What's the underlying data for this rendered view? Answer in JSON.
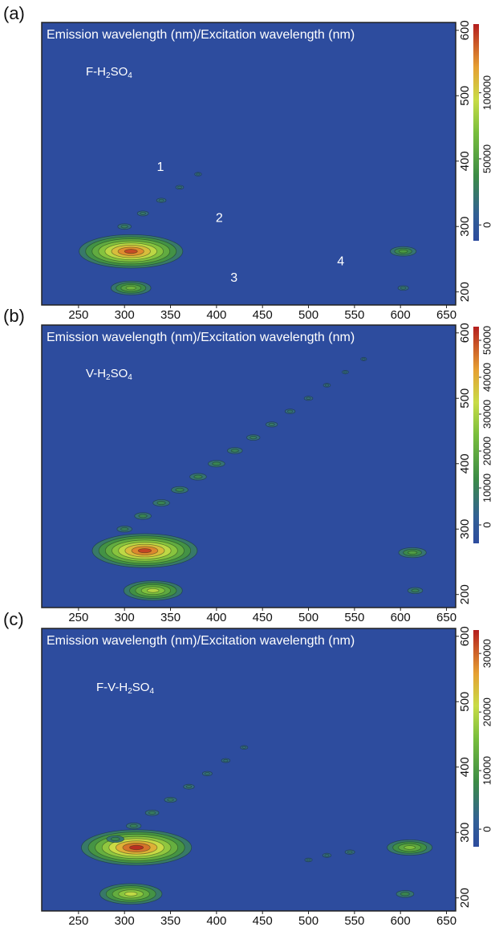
{
  "chart_data": [
    {
      "type": "contour",
      "panel_label": "(a)",
      "title": "Emission wavelength (nm)/Excitation wavelength (nm)",
      "sample": "F-H2SO4",
      "xlim": [
        210,
        660
      ],
      "xticks": [
        250,
        300,
        350,
        400,
        450,
        500,
        550,
        600,
        650
      ],
      "ylim": [
        180,
        612
      ],
      "yticks": [
        200,
        300,
        400,
        500,
        600
      ],
      "clim": [
        -12000,
        152000
      ],
      "cticks": [
        0,
        50000,
        100000
      ],
      "peaks": {
        "x": [
          307,
          307,
          603,
          603,
          300,
          320,
          340,
          360,
          380
        ],
        "y": [
          262,
          206,
          262,
          206,
          300,
          320,
          340,
          360,
          380
        ],
        "values": [
          140000,
          60000,
          40000,
          15000,
          20000,
          16000,
          13000,
          10000,
          8000
        ]
      },
      "annotations": [
        {
          "text": "1",
          "x": 339,
          "y": 390
        },
        {
          "text": "2",
          "x": 403,
          "y": 312
        },
        {
          "text": "3",
          "x": 419,
          "y": 221
        },
        {
          "text": "4",
          "x": 535,
          "y": 246
        }
      ]
    },
    {
      "type": "contour",
      "panel_label": "(b)",
      "title": "Emission wavelength (nm)/Excitation wavelength (nm)",
      "sample": "V-H2SO4",
      "xlim": [
        210,
        660
      ],
      "xticks": [
        250,
        300,
        350,
        400,
        450,
        500,
        550,
        600,
        650
      ],
      "ylim": [
        180,
        612
      ],
      "yticks": [
        200,
        300,
        400,
        500,
        600
      ],
      "clim": [
        -5000,
        53700
      ],
      "cticks": [
        0,
        10000,
        20000,
        30000,
        40000,
        50000
      ],
      "peaks": {
        "x": [
          322,
          331,
          613,
          616,
          300,
          320,
          340,
          360,
          380,
          400,
          420,
          440,
          460,
          480,
          500,
          520,
          540,
          560
        ],
        "y": [
          267,
          206,
          264,
          206,
          300,
          320,
          340,
          360,
          380,
          400,
          420,
          440,
          460,
          480,
          500,
          520,
          540,
          560
        ],
        "values": [
          50000,
          30000,
          15000,
          8000,
          8000,
          9000,
          9000,
          9000,
          9000,
          9000,
          8000,
          7000,
          6000,
          5000,
          4000,
          3000,
          2500,
          2000
        ]
      }
    },
    {
      "type": "contour",
      "panel_label": "(c)",
      "title": "Emission wavelength (nm)/Excitation wavelength (nm)",
      "sample": "F-V-H2SO4",
      "xlim": [
        210,
        660
      ],
      "xticks": [
        250,
        300,
        350,
        400,
        450,
        500,
        550,
        600,
        650
      ],
      "ylim": [
        180,
        612
      ],
      "yticks": [
        200,
        300,
        400,
        500,
        600
      ],
      "clim": [
        -3000,
        34000
      ],
      "cticks": [
        0,
        10000,
        20000,
        30000
      ],
      "peaks": {
        "x": [
          313,
          307,
          610,
          605,
          290,
          310,
          330,
          350,
          370,
          390,
          410,
          430,
          500,
          520,
          545
        ],
        "y": [
          277,
          206,
          277,
          206,
          290,
          310,
          330,
          350,
          370,
          390,
          410,
          430,
          258,
          265,
          270
        ],
        "values": [
          33000,
          20000,
          15000,
          6000,
          6000,
          5000,
          4500,
          4000,
          3500,
          3000,
          2500,
          2000,
          2000,
          2500,
          3000
        ]
      }
    }
  ]
}
